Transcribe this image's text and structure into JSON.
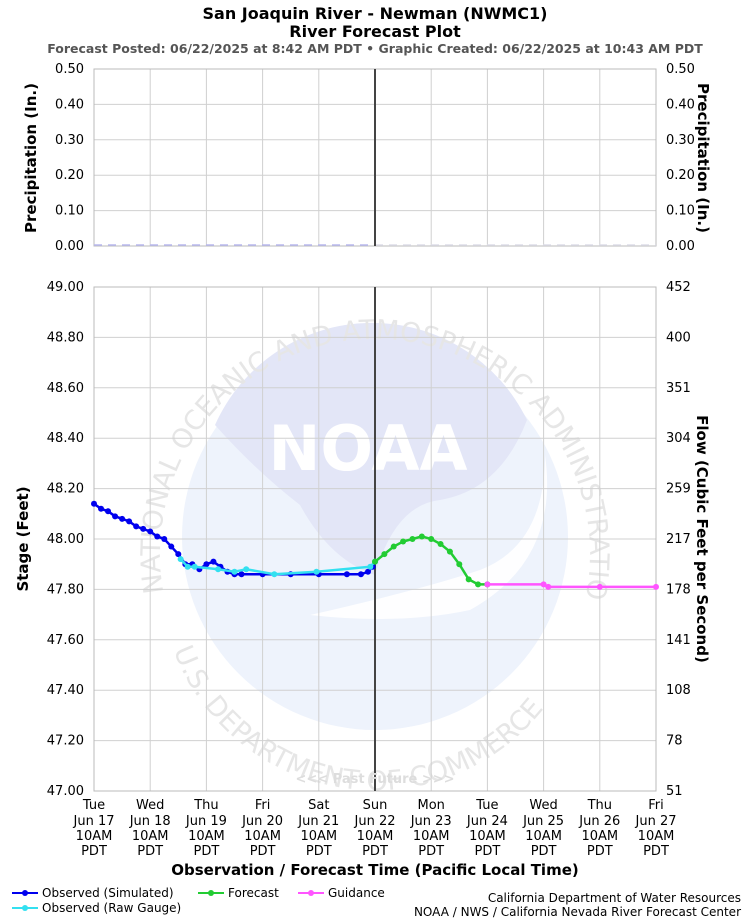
{
  "header": {
    "title_line1": "San Joaquin River - Newman (NWMC1)",
    "title_line2": "River Forecast Plot",
    "subtitle": "Forecast Posted: 06/22/2025 at 8:42 AM PDT  •  Graphic Created: 06/22/2025 at 10:43 AM PDT"
  },
  "footer": {
    "credit_line1": "California Department of Water Resources",
    "credit_line2": "NOAA / NWS / California Nevada River Forecast Center"
  },
  "watermark": {
    "agency_arc_top": "NATIONAL OCEANIC AND ATMOSPHERIC ADMINISTRATION",
    "agency_arc_bottom": "U.S. DEPARTMENT OF COMMERCE",
    "logo_text": "NOAA"
  },
  "colors": {
    "observed_simulated": "#0000ee",
    "observed_raw": "#33e0f0",
    "forecast": "#22cc33",
    "guidance": "#ff55ff",
    "precip": "#b8b8ee",
    "grid": "#d0d0d0",
    "now_line": "#444444"
  },
  "chart_data": [
    {
      "type": "line",
      "panel": "precipitation",
      "ylabel_left": "Precipitation (In.)",
      "ylabel_right": "Precipitation (In.)",
      "ylim": [
        0,
        0.5
      ],
      "yticks": [
        "0.00",
        "0.10",
        "0.20",
        "0.30",
        "0.40",
        "0.50"
      ],
      "grid": true,
      "series": [
        {
          "x_start": "2025-06-17 10:00",
          "x_end": "2025-06-22 10:00",
          "value": 0.0
        }
      ]
    },
    {
      "type": "line",
      "panel": "stage",
      "xlabel": "Observation / Forecast Time (Pacific Local Time)",
      "ylabel_left": "Stage (Feet)",
      "ylabel_right": "Flow (Cubic Feet per Second)",
      "ylim": [
        47.0,
        49.0
      ],
      "yticks": [
        "47.00",
        "47.20",
        "47.40",
        "47.60",
        "47.80",
        "48.00",
        "48.20",
        "48.40",
        "48.60",
        "48.80",
        "49.00"
      ],
      "yticks_right": [
        "51",
        "78",
        "108",
        "141",
        "178",
        "217",
        "259",
        "304",
        "351",
        "400",
        "452"
      ],
      "grid": true,
      "now_marker": "2025-06-22 10:00",
      "past_future_label": "<<< Past   Future >>>",
      "xticks": [
        {
          "day": "Tue",
          "date": "Jun 17",
          "time": "10AM",
          "tz": "PDT"
        },
        {
          "day": "Wed",
          "date": "Jun 18",
          "time": "10AM",
          "tz": "PDT"
        },
        {
          "day": "Thu",
          "date": "Jun 19",
          "time": "10AM",
          "tz": "PDT"
        },
        {
          "day": "Fri",
          "date": "Jun 20",
          "time": "10AM",
          "tz": "PDT"
        },
        {
          "day": "Sat",
          "date": "Jun 21",
          "time": "10AM",
          "tz": "PDT"
        },
        {
          "day": "Sun",
          "date": "Jun 22",
          "time": "10AM",
          "tz": "PDT"
        },
        {
          "day": "Mon",
          "date": "Jun 23",
          "time": "10AM",
          "tz": "PDT"
        },
        {
          "day": "Tue",
          "date": "Jun 24",
          "time": "10AM",
          "tz": "PDT"
        },
        {
          "day": "Wed",
          "date": "Jun 25",
          "time": "10AM",
          "tz": "PDT"
        },
        {
          "day": "Thu",
          "date": "Jun 26",
          "time": "10AM",
          "tz": "PDT"
        },
        {
          "day": "Fri",
          "date": "Jun 27",
          "time": "10AM",
          "tz": "PDT"
        }
      ],
      "series": [
        {
          "name": "Observed (Simulated)",
          "color": "#0000ee",
          "points": [
            [
              "2025-06-17 10:00",
              48.14
            ],
            [
              "2025-06-17 13:00",
              48.12
            ],
            [
              "2025-06-17 16:00",
              48.11
            ],
            [
              "2025-06-17 19:00",
              48.09
            ],
            [
              "2025-06-17 22:00",
              48.08
            ],
            [
              "2025-06-18 01:00",
              48.07
            ],
            [
              "2025-06-18 04:00",
              48.05
            ],
            [
              "2025-06-18 07:00",
              48.04
            ],
            [
              "2025-06-18 10:00",
              48.03
            ],
            [
              "2025-06-18 13:00",
              48.01
            ],
            [
              "2025-06-18 16:00",
              48.0
            ],
            [
              "2025-06-18 19:00",
              47.97
            ],
            [
              "2025-06-18 22:00",
              47.94
            ],
            [
              "2025-06-19 01:00",
              47.9
            ],
            [
              "2025-06-19 04:00",
              47.9
            ],
            [
              "2025-06-19 07:00",
              47.88
            ],
            [
              "2025-06-19 10:00",
              47.9
            ],
            [
              "2025-06-19 13:00",
              47.91
            ],
            [
              "2025-06-19 16:00",
              47.89
            ],
            [
              "2025-06-19 19:00",
              47.87
            ],
            [
              "2025-06-19 22:00",
              47.86
            ],
            [
              "2025-06-20 01:00",
              47.86
            ],
            [
              "2025-06-20 10:00",
              47.86
            ],
            [
              "2025-06-20 22:00",
              47.86
            ],
            [
              "2025-06-21 10:00",
              47.86
            ],
            [
              "2025-06-21 22:00",
              47.86
            ],
            [
              "2025-06-22 04:00",
              47.86
            ],
            [
              "2025-06-22 07:00",
              47.87
            ],
            [
              "2025-06-22 09:00",
              47.89
            ]
          ]
        },
        {
          "name": "Observed (Raw Gauge)",
          "color": "#33e0f0",
          "points": [
            [
              "2025-06-18 23:00",
              47.92
            ],
            [
              "2025-06-19 02:00",
              47.89
            ],
            [
              "2025-06-19 05:00",
              47.89
            ],
            [
              "2025-06-19 15:00",
              47.88
            ],
            [
              "2025-06-19 22:00",
              47.87
            ],
            [
              "2025-06-20 03:00",
              47.88
            ],
            [
              "2025-06-20 15:00",
              47.86
            ],
            [
              "2025-06-21 09:00",
              47.87
            ],
            [
              "2025-06-22 08:00",
              47.89
            ],
            [
              "2025-06-22 10:00",
              47.91
            ]
          ]
        },
        {
          "name": "Forecast",
          "color": "#22cc33",
          "points": [
            [
              "2025-06-22 10:00",
              47.91
            ],
            [
              "2025-06-22 14:00",
              47.94
            ],
            [
              "2025-06-22 18:00",
              47.97
            ],
            [
              "2025-06-22 22:00",
              47.99
            ],
            [
              "2025-06-23 02:00",
              48.0
            ],
            [
              "2025-06-23 06:00",
              48.01
            ],
            [
              "2025-06-23 10:00",
              48.0
            ],
            [
              "2025-06-23 14:00",
              47.98
            ],
            [
              "2025-06-23 18:00",
              47.95
            ],
            [
              "2025-06-23 22:00",
              47.9
            ],
            [
              "2025-06-24 02:00",
              47.84
            ],
            [
              "2025-06-24 06:00",
              47.82
            ],
            [
              "2025-06-24 10:00",
              47.82
            ]
          ]
        },
        {
          "name": "Guidance",
          "color": "#ff55ff",
          "points": [
            [
              "2025-06-24 10:00",
              47.82
            ],
            [
              "2025-06-25 10:00",
              47.82
            ],
            [
              "2025-06-25 12:00",
              47.81
            ],
            [
              "2025-06-26 10:00",
              47.81
            ],
            [
              "2025-06-27 10:00",
              47.81
            ]
          ]
        }
      ]
    }
  ]
}
